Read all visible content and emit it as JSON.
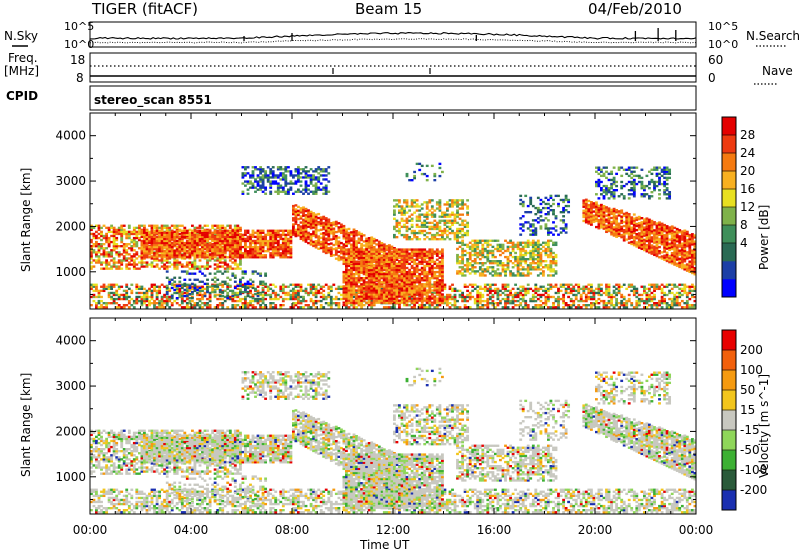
{
  "header": {
    "station": "TIGER (fitACF)",
    "beam": "Beam 15",
    "date": "04/Feb/2010"
  },
  "side_labels": {
    "nsky": "N.Sky",
    "nsearch": "N.Search",
    "freq_line1": "Freq.",
    "freq_line2": "[MHz]",
    "nave": "Nave",
    "cpid": "CPID"
  },
  "noise_axis": {
    "top": "10^5",
    "bottom": "10^0"
  },
  "freq_axis": {
    "ticks": [
      "18",
      "8"
    ]
  },
  "nave_axis": {
    "ticks": [
      "60",
      "0"
    ]
  },
  "scan_label": "stereo_scan 8551",
  "chart_data": [
    {
      "type": "heatmap",
      "name": "power",
      "ylabel": "Slant Range [km]",
      "yticks": [
        "4000",
        "3000",
        "2000",
        "1000"
      ],
      "ylim": [
        180,
        4500
      ],
      "xlim": [
        0,
        24
      ],
      "colorbar": {
        "label": "Power [dB]",
        "ticks": [
          "28",
          "24",
          "20",
          "16",
          "12",
          "8",
          "4"
        ],
        "colors": [
          "#0000ff",
          "#1c3fa6",
          "#2a6a54",
          "#3f8f5a",
          "#7fb24a",
          "#e8e020",
          "#f8b020",
          "#f57a10",
          "#ee3a10",
          "#e40000"
        ]
      }
    },
    {
      "type": "heatmap",
      "name": "velocity",
      "ylabel": "Slant Range [km]",
      "yticks": [
        "4000",
        "3000",
        "2000",
        "1000"
      ],
      "ylim": [
        180,
        4500
      ],
      "xlim": [
        0,
        24
      ],
      "colorbar": {
        "label": "Velocity [m s^-1]",
        "ticks": [
          "200",
          "100",
          "50",
          "15",
          "-15",
          "-50",
          "-100",
          "-200"
        ],
        "colors": [
          "#1a2fb0",
          "#2a5a3a",
          "#3cb033",
          "#8fd65a",
          "#c8c8c0",
          "#f2c51c",
          "#f59a10",
          "#f2600c",
          "#e80000"
        ]
      },
      "xticks": [
        "00:00",
        "04:00",
        "08:00",
        "12:00",
        "16:00",
        "20:00",
        "00:00"
      ],
      "xlabel": "Time UT"
    }
  ]
}
